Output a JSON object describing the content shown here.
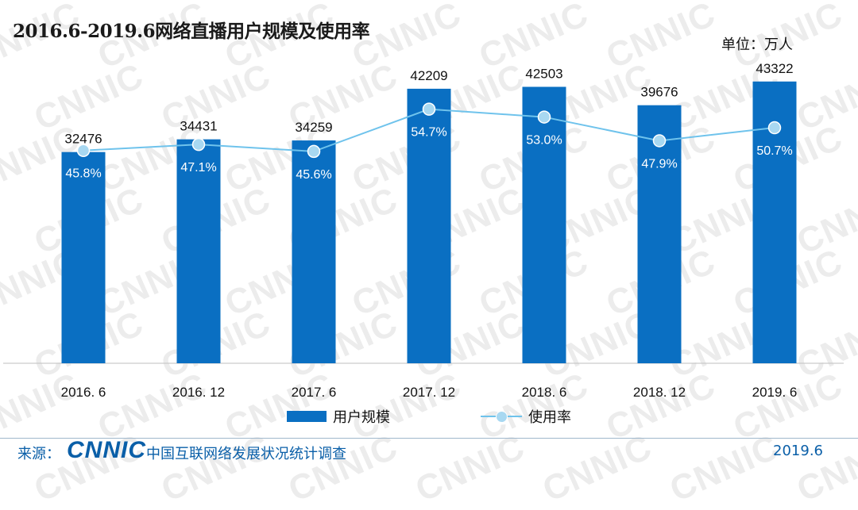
{
  "header": {
    "title": "2016.6-2019.6网络直播用户规模及使用率",
    "unit": "单位：万人"
  },
  "watermark": {
    "text": "CNNIC"
  },
  "chart_data": {
    "type": "bar",
    "title": "2016.6-2019.6网络直播用户规模及使用率",
    "categories": [
      "2016. 6",
      "2016. 12",
      "2017. 6",
      "2017. 12",
      "2018. 6",
      "2018. 12",
      "2019. 6"
    ],
    "series": [
      {
        "name": "用户规模",
        "type": "bar",
        "values": [
          32476,
          34431,
          34259,
          42209,
          42503,
          39676,
          43322
        ],
        "color": "#0a6fc2"
      },
      {
        "name": "使用率",
        "type": "line",
        "values": [
          45.8,
          47.1,
          45.6,
          54.7,
          53.0,
          47.9,
          50.7
        ],
        "labels": [
          "45.8%",
          "47.1%",
          "45.6%",
          "54.7%",
          "53.0%",
          "47.9%",
          "50.7%"
        ],
        "color": "#6fc3ec"
      }
    ],
    "bar_ylim": [
      0,
      50000
    ],
    "line_ylim": [
      0,
      70
    ],
    "grid": false,
    "legend_position": "bottom"
  },
  "legend": {
    "bar_label": "用户规模",
    "line_label": "使用率"
  },
  "footer": {
    "source_prefix": "来源：",
    "logo_text": "CNNIC",
    "source_text": "中国互联网络发展状况统计调查",
    "date": "2019.6"
  }
}
